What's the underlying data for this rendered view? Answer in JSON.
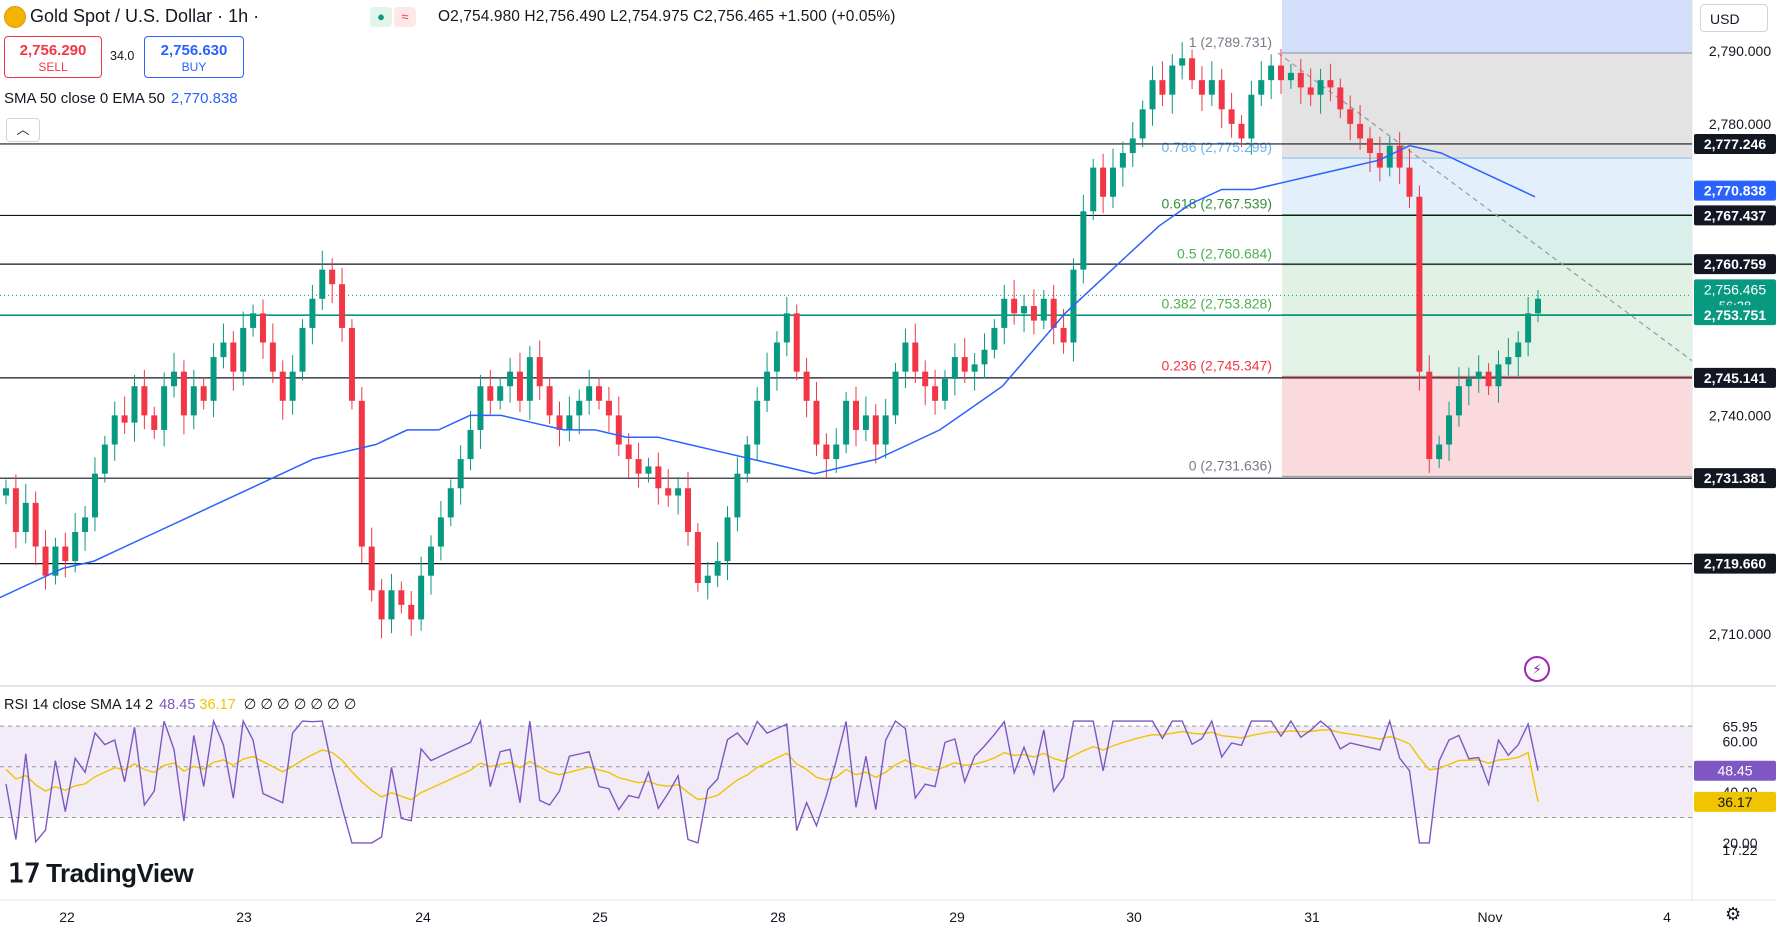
{
  "header": {
    "symbol_title": "Gold Spot / U.S. Dollar · 1h ·",
    "symbol_icon": "gold-coin-icon",
    "status_icons": [
      "market-open-dot-icon",
      "delayed-wave-icon"
    ],
    "ohlc_text": "O2,754.980  H2,756.490  L2,754.975  C2,756.465  +1.500 (+0.05%)",
    "sell_price": "2,756.290",
    "sell_label": "SELL",
    "spread": "34.0",
    "buy_price": "2,756.630",
    "buy_label": "BUY",
    "currency": "USD"
  },
  "indicators": {
    "ema_label": "SMA 50 close 0 EMA 50",
    "ema_value": "2,770.838",
    "rsi_label": "RSI 14 close SMA 14 2",
    "rsi_value": "48.45",
    "rsi_sma_value": "36.17",
    "rsi_extras": "∅ ∅ ∅ ∅ ∅ ∅ ∅"
  },
  "branding": {
    "logo_text": "TradingView"
  },
  "colors": {
    "up": "#089981",
    "down": "#f23645",
    "ema": "#2962ff",
    "rsi": "#7e57c2",
    "rsi_sma": "#f0c400",
    "accent": "#2962ff"
  },
  "chart_data": [
    {
      "type": "candlestick",
      "title": "Gold Spot / U.S. Dollar · 1h",
      "x_tick_labels": [
        "22",
        "23",
        "24",
        "25",
        "28",
        "29",
        "30",
        "31",
        "Nov",
        "4"
      ],
      "y_tick_labels": [
        "2,790.000",
        "2,780.000",
        "2,740.000",
        "2,710.000"
      ],
      "ylim": [
        2704,
        2796
      ],
      "horizontal_levels": [
        "2,777.246",
        "2,767.437",
        "2,760.759",
        "2,753.751",
        "2,745.141",
        "2,731.381",
        "2,719.660"
      ],
      "price_labels": [
        {
          "text": "2,777.246",
          "role": "level"
        },
        {
          "text": "2,770.838",
          "role": "ema"
        },
        {
          "text": "2,767.437",
          "role": "level"
        },
        {
          "text": "2,760.759",
          "role": "level"
        },
        {
          "text": "2,756.465",
          "role": "last",
          "countdown": "56:38"
        },
        {
          "text": "2,753.751",
          "role": "level-green"
        },
        {
          "text": "2,745.141",
          "role": "level"
        },
        {
          "text": "2,731.381",
          "role": "level"
        },
        {
          "text": "2,719.660",
          "role": "level"
        }
      ],
      "fibonacci": [
        {
          "label": "1 (2,789.731)",
          "price": 2789.731
        },
        {
          "label": "0.786 (2,775.299)",
          "price": 2775.299
        },
        {
          "label": "0.618 (2,767.539)",
          "price": 2767.539
        },
        {
          "label": "0.5 (2,760.684)",
          "price": 2760.684
        },
        {
          "label": "0.382 (2,753.828)",
          "price": 2753.828
        },
        {
          "label": "0.236 (2,745.347)",
          "price": 2745.347
        },
        {
          "label": "0 (2,731.636)",
          "price": 2731.636
        }
      ],
      "candles_close": [
        2730,
        2724,
        2728,
        2722,
        2718,
        2722,
        2720,
        2724,
        2726,
        2732,
        2736,
        2740,
        2739,
        2744,
        2740,
        2738,
        2744,
        2746,
        2740,
        2744,
        2742,
        2748,
        2750,
        2746,
        2752,
        2754,
        2750,
        2746,
        2742,
        2746,
        2752,
        2756,
        2760,
        2758,
        2752,
        2742,
        2722,
        2716,
        2712,
        2716,
        2714,
        2712,
        2718,
        2722,
        2726,
        2730,
        2734,
        2738,
        2744,
        2742,
        2744,
        2746,
        2742,
        2748,
        2744,
        2740,
        2738,
        2740,
        2742,
        2744,
        2742,
        2740,
        2736,
        2734,
        2732,
        2733,
        2730,
        2729,
        2730,
        2724,
        2717,
        2718,
        2720,
        2726,
        2732,
        2736,
        2742,
        2746,
        2750,
        2754,
        2746,
        2742,
        2736,
        2734,
        2736,
        2742,
        2738,
        2740,
        2736,
        2740,
        2746,
        2750,
        2746,
        2744,
        2742,
        2745,
        2748,
        2746,
        2747,
        2749,
        2752,
        2756,
        2754,
        2755,
        2753,
        2756,
        2752,
        2750,
        2760,
        2768,
        2774,
        2770,
        2774,
        2776,
        2778,
        2782,
        2786,
        2784,
        2788,
        2789,
        2786,
        2784,
        2786,
        2782,
        2780,
        2778,
        2784,
        2786,
        2788,
        2786,
        2787,
        2785,
        2784,
        2786,
        2785,
        2782,
        2780,
        2778,
        2776,
        2774,
        2777,
        2774,
        2770,
        2746,
        2734,
        2736,
        2740,
        2744,
        2745,
        2746,
        2744,
        2747,
        2748,
        2750,
        2754,
        2756
      ],
      "ema50_approx": [
        2715,
        2717,
        2719,
        2720,
        2722,
        2724,
        2726,
        2728,
        2730,
        2732,
        2734,
        2735,
        2736,
        2738,
        2738,
        2740,
        2740,
        2739,
        2738,
        2738,
        2737,
        2737,
        2736,
        2735,
        2734,
        2733,
        2732,
        2733,
        2734,
        2736,
        2738,
        2741,
        2744,
        2749,
        2754,
        2758,
        2762,
        2766,
        2769,
        2771,
        2771,
        2772,
        2773,
        2774,
        2775,
        2777,
        2776,
        2774,
        2772,
        2770
      ],
      "rsi": {
        "current": 48.45,
        "sma": 36.17,
        "ticks": [
          "65.95",
          "60.00",
          "40.00",
          "20.00",
          "17.22"
        ]
      }
    }
  ]
}
